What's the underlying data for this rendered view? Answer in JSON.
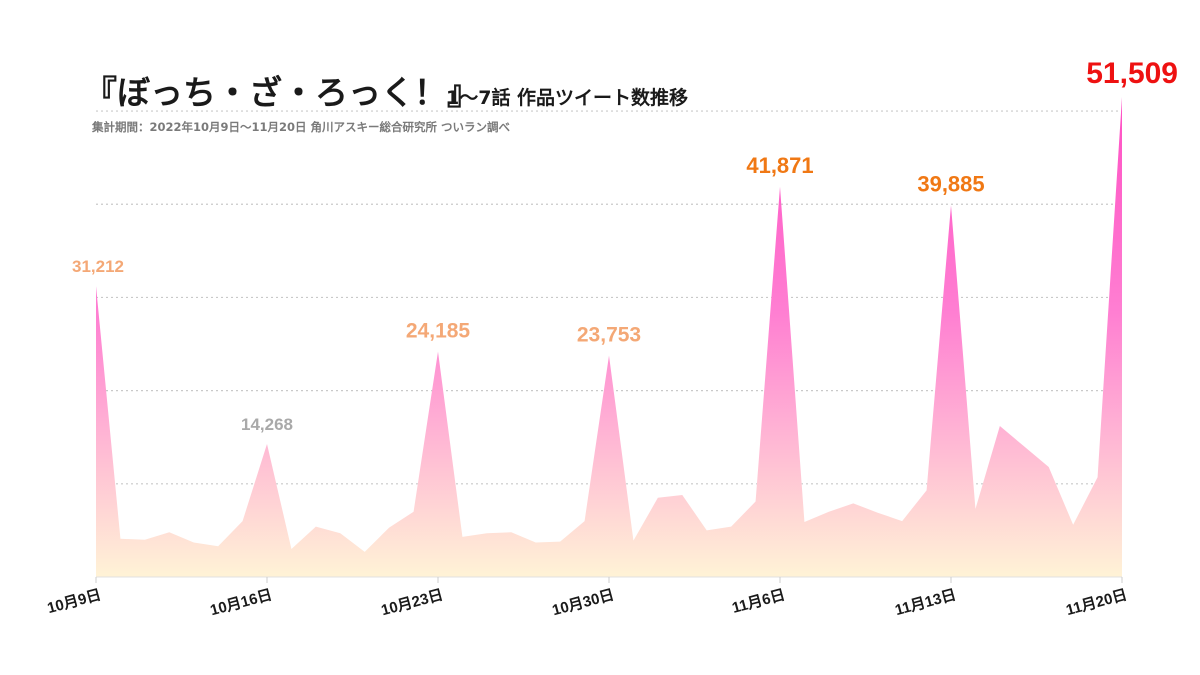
{
  "chart_data": {
    "type": "area",
    "title": "『ぼっち・ざ・ろっく！』",
    "title_suffix": "1〜7話 作品ツイート数推移",
    "subtitle": "集計期間：2022年10月9日〜11月20日 角川アスキー総合研究所 ついラン調べ",
    "xlabel": "",
    "ylabel": "",
    "ylim": [
      0,
      51509
    ],
    "grid": true,
    "x_ticks": [
      {
        "index": 0,
        "label": "10月9日"
      },
      {
        "index": 7,
        "label": "10月16日"
      },
      {
        "index": 14,
        "label": "10月23日"
      },
      {
        "index": 21,
        "label": "10月30日"
      },
      {
        "index": 28,
        "label": "11月6日"
      },
      {
        "index": 35,
        "label": "11月13日"
      },
      {
        "index": 42,
        "label": "11月20日"
      }
    ],
    "series": [
      {
        "name": "作品ツイート数",
        "values": [
          31212,
          4100,
          4000,
          4800,
          3700,
          3300,
          6000,
          14268,
          3000,
          5400,
          4700,
          2700,
          5300,
          7000,
          24185,
          4300,
          4700,
          4800,
          3700,
          3800,
          6000,
          23753,
          3900,
          8500,
          8800,
          5000,
          5400,
          8100,
          41871,
          5900,
          7000,
          7900,
          6900,
          6000,
          9300,
          39885,
          7300,
          16200,
          14000,
          11800,
          5600,
          10700,
          51509
        ],
        "fill_top": "#ff4fc4",
        "fill_bottom": "#fff3d6"
      }
    ],
    "annotations": [
      {
        "index": 0,
        "text": "31,212",
        "color": "#f4a876",
        "size": 17
      },
      {
        "index": 7,
        "text": "14,268",
        "color": "#a9a9a9",
        "size": 17
      },
      {
        "index": 14,
        "text": "24,185",
        "color": "#f4a876",
        "size": 21
      },
      {
        "index": 21,
        "text": "23,753",
        "color": "#f4a876",
        "size": 21
      },
      {
        "index": 28,
        "text": "41,871",
        "color": "#f07814",
        "size": 22
      },
      {
        "index": 35,
        "text": "39,885",
        "color": "#f07814",
        "size": 22
      },
      {
        "index": 42,
        "text": "51,509",
        "color": "#ee1111",
        "size": 30
      }
    ]
  }
}
